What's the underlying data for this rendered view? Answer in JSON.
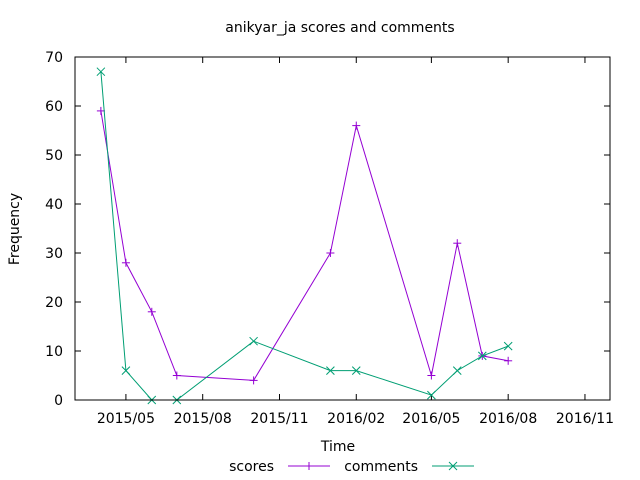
{
  "chart_data": {
    "type": "line",
    "title": "anikyar_ja scores and comments",
    "xlabel": "Time",
    "ylabel": "Frequency",
    "x_tick_labels": [
      "2015/05",
      "2015/08",
      "2015/11",
      "2016/02",
      "2016/05",
      "2016/08",
      "2016/11"
    ],
    "x_tick_dates": [
      "2015-05-01",
      "2015-08-01",
      "2015-11-01",
      "2016-02-01",
      "2016-05-01",
      "2016-08-01",
      "2016-11-01"
    ],
    "xlim": [
      "2015-03-01",
      "2016-12-01"
    ],
    "ylim": [
      0,
      70
    ],
    "y_ticks": [
      0,
      10,
      20,
      30,
      40,
      50,
      60,
      70
    ],
    "grid": false,
    "legend_position": "bottom-center",
    "series": [
      {
        "name": "scores",
        "color": "#9400d3",
        "marker": "plus",
        "x": [
          "2015-04-01",
          "2015-05-01",
          "2015-06-01",
          "2015-07-01",
          "2015-10-01",
          "2016-01-01",
          "2016-02-01",
          "2016-05-01",
          "2016-06-01",
          "2016-07-01",
          "2016-08-01"
        ],
        "values": [
          59,
          28,
          18,
          5,
          4,
          30,
          56,
          5,
          32,
          9,
          8
        ]
      },
      {
        "name": "comments",
        "color": "#009e73",
        "marker": "cross",
        "x": [
          "2015-04-01",
          "2015-05-01",
          "2015-06-01",
          "2015-07-01",
          "2015-10-01",
          "2016-01-01",
          "2016-02-01",
          "2016-05-01",
          "2016-06-01",
          "2016-07-01",
          "2016-08-01"
        ],
        "values": [
          67,
          6,
          0,
          0,
          12,
          6,
          6,
          1,
          6,
          9,
          11
        ]
      }
    ]
  }
}
